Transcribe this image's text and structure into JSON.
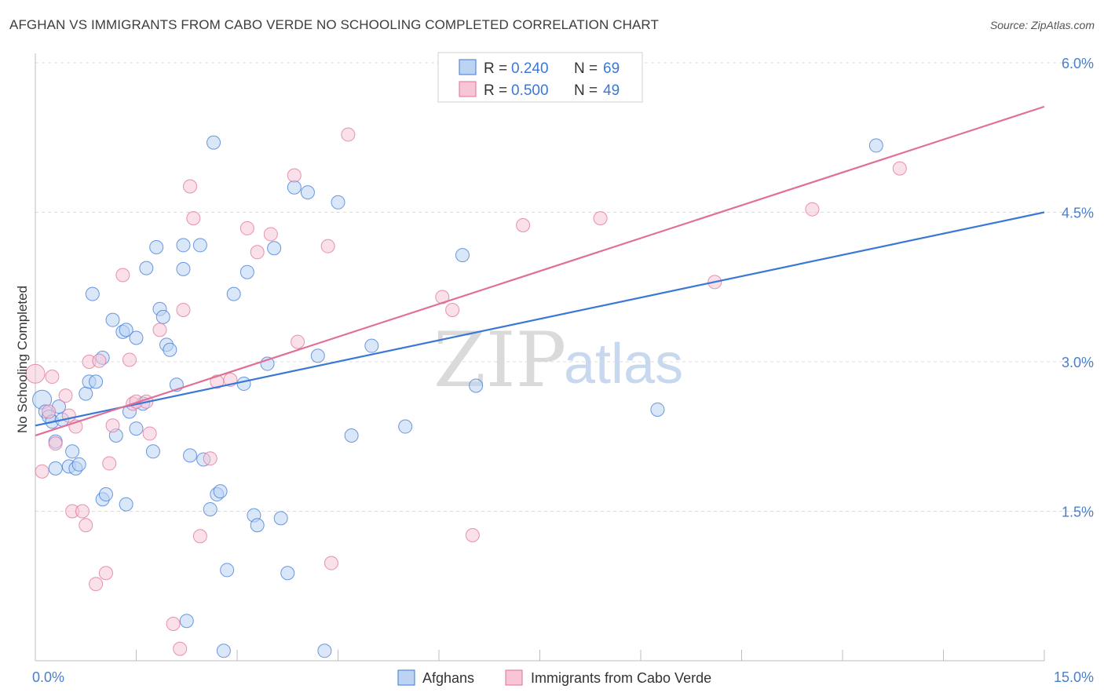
{
  "title": "AFGHAN VS IMMIGRANTS FROM CABO VERDE NO SCHOOLING COMPLETED CORRELATION CHART",
  "source": "Source: ZipAtlas.com",
  "watermark": {
    "zip": "ZIP",
    "atlas": "atlas"
  },
  "colors": {
    "blue": "#3b78d6",
    "pink": "#e07098",
    "blue_fill": "#bcd3f2",
    "pink_fill": "#f6c6d6"
  },
  "legend": {
    "r_label": "R =",
    "n_label": "N =",
    "series": [
      {
        "r": "0.240",
        "n": "69"
      },
      {
        "r": "0.500",
        "n": "49"
      }
    ]
  },
  "chart_data": {
    "type": "scatter",
    "xlabel": "",
    "ylabel": "No Schooling Completed",
    "xlim": [
      0,
      15
    ],
    "ylim": [
      0,
      6
    ],
    "x_tick_labels": [
      "0.0%",
      "15.0%"
    ],
    "y_ticks": [
      {
        "value": 1.5,
        "label": "1.5%"
      },
      {
        "value": 3.0,
        "label": "3.0%"
      },
      {
        "value": 4.5,
        "label": "4.5%"
      },
      {
        "value": 6.0,
        "label": "6.0%"
      }
    ],
    "grid": "horizontal dashed",
    "legend_placement": "top-center",
    "series": [
      {
        "name": "Afghans",
        "color": "#3b78d6",
        "trend": [
          [
            0,
            2.36
          ],
          [
            15,
            4.5
          ]
        ],
        "points": [
          [
            0.1,
            2.62
          ],
          [
            0.15,
            2.5
          ],
          [
            0.2,
            2.45
          ],
          [
            0.25,
            2.4
          ],
          [
            0.3,
            1.93
          ],
          [
            0.3,
            2.2
          ],
          [
            0.35,
            2.55
          ],
          [
            0.4,
            2.42
          ],
          [
            0.55,
            2.1
          ],
          [
            0.5,
            1.95
          ],
          [
            0.6,
            1.93
          ],
          [
            0.65,
            1.97
          ],
          [
            0.75,
            2.68
          ],
          [
            0.8,
            2.8
          ],
          [
            0.9,
            2.8
          ],
          [
            0.85,
            3.68
          ],
          [
            1.0,
            3.04
          ],
          [
            1.0,
            1.62
          ],
          [
            1.05,
            1.67
          ],
          [
            1.15,
            3.42
          ],
          [
            1.2,
            2.26
          ],
          [
            1.3,
            3.3
          ],
          [
            1.35,
            3.32
          ],
          [
            1.35,
            1.57
          ],
          [
            1.4,
            2.5
          ],
          [
            1.5,
            2.33
          ],
          [
            1.5,
            3.24
          ],
          [
            1.6,
            2.58
          ],
          [
            1.65,
            3.94
          ],
          [
            1.75,
            2.1
          ],
          [
            1.8,
            4.15
          ],
          [
            1.85,
            3.53
          ],
          [
            1.9,
            3.45
          ],
          [
            1.95,
            3.17
          ],
          [
            2.0,
            3.12
          ],
          [
            2.1,
            2.77
          ],
          [
            2.2,
            3.93
          ],
          [
            2.2,
            4.17
          ],
          [
            2.25,
            0.4
          ],
          [
            2.3,
            2.06
          ],
          [
            2.45,
            4.17
          ],
          [
            2.5,
            2.02
          ],
          [
            2.6,
            1.52
          ],
          [
            2.65,
            5.2
          ],
          [
            2.7,
            1.67
          ],
          [
            2.75,
            1.7
          ],
          [
            2.8,
            0.1
          ],
          [
            2.85,
            0.91
          ],
          [
            2.95,
            3.68
          ],
          [
            3.1,
            2.78
          ],
          [
            3.15,
            3.9
          ],
          [
            3.25,
            1.46
          ],
          [
            3.3,
            1.36
          ],
          [
            3.45,
            2.98
          ],
          [
            3.55,
            4.14
          ],
          [
            3.65,
            1.43
          ],
          [
            3.75,
            0.88
          ],
          [
            3.85,
            4.75
          ],
          [
            4.05,
            4.7
          ],
          [
            4.2,
            3.06
          ],
          [
            4.3,
            0.1
          ],
          [
            4.5,
            4.6
          ],
          [
            4.7,
            2.26
          ],
          [
            5.0,
            3.16
          ],
          [
            5.5,
            2.35
          ],
          [
            6.35,
            4.07
          ],
          [
            6.55,
            2.76
          ],
          [
            9.25,
            2.52
          ],
          [
            12.5,
            5.17
          ]
        ]
      },
      {
        "name": "Immigrants from Cabo Verde",
        "color": "#e07098",
        "trend": [
          [
            0,
            2.26
          ],
          [
            15,
            5.56
          ]
        ],
        "points": [
          [
            0.0,
            2.88
          ],
          [
            0.1,
            1.9
          ],
          [
            0.2,
            2.5
          ],
          [
            0.25,
            2.85
          ],
          [
            0.3,
            2.18
          ],
          [
            0.45,
            2.66
          ],
          [
            0.5,
            2.46
          ],
          [
            0.55,
            1.5
          ],
          [
            0.6,
            2.35
          ],
          [
            0.7,
            1.5
          ],
          [
            0.75,
            1.36
          ],
          [
            0.8,
            3.0
          ],
          [
            0.9,
            0.77
          ],
          [
            0.95,
            3.01
          ],
          [
            1.05,
            0.88
          ],
          [
            1.1,
            1.98
          ],
          [
            1.15,
            2.36
          ],
          [
            1.3,
            3.87
          ],
          [
            1.4,
            3.02
          ],
          [
            1.45,
            2.58
          ],
          [
            1.5,
            2.6
          ],
          [
            1.65,
            2.6
          ],
          [
            1.7,
            2.28
          ],
          [
            1.85,
            3.32
          ],
          [
            2.05,
            0.37
          ],
          [
            2.15,
            0.12
          ],
          [
            2.2,
            3.52
          ],
          [
            2.3,
            4.76
          ],
          [
            2.35,
            4.44
          ],
          [
            2.45,
            1.25
          ],
          [
            2.6,
            2.03
          ],
          [
            2.7,
            2.8
          ],
          [
            2.9,
            2.82
          ],
          [
            3.15,
            4.34
          ],
          [
            3.3,
            4.1
          ],
          [
            3.5,
            4.28
          ],
          [
            3.85,
            4.87
          ],
          [
            3.9,
            3.2
          ],
          [
            4.35,
            4.16
          ],
          [
            4.4,
            0.98
          ],
          [
            4.65,
            5.28
          ],
          [
            6.05,
            3.65
          ],
          [
            6.2,
            3.52
          ],
          [
            6.5,
            1.26
          ],
          [
            7.25,
            4.37
          ],
          [
            8.4,
            4.44
          ],
          [
            10.1,
            3.8
          ],
          [
            11.55,
            4.53
          ],
          [
            12.85,
            4.94
          ]
        ]
      }
    ]
  }
}
